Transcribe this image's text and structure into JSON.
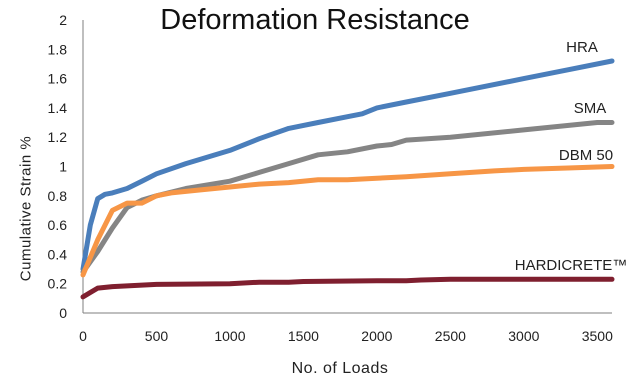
{
  "chart_data": {
    "type": "line",
    "title": "Deformation Resistance",
    "xlabel": "No. of Loads",
    "ylabel": "Cumulative Strain %",
    "xlim": [
      0,
      3600
    ],
    "ylim": [
      0,
      2
    ],
    "xticks": [
      "0",
      "500",
      "1000",
      "1500",
      "2000",
      "2500",
      "3000",
      "3500"
    ],
    "yticks": [
      "0",
      "0.2",
      "0.4",
      "0.6",
      "0.8",
      "1",
      "1.2",
      "1.4",
      "1.6",
      "1.8",
      "2"
    ],
    "grid": false,
    "legend": "inline labels at line ends",
    "series": [
      {
        "name": "HRA",
        "color": "#4a7ebb",
        "x": [
          0,
          50,
          100,
          150,
          200,
          300,
          400,
          500,
          700,
          1000,
          1200,
          1400,
          1600,
          1800,
          1900,
          2000,
          2200,
          2500,
          3000,
          3300,
          3600
        ],
        "y": [
          0.3,
          0.6,
          0.78,
          0.81,
          0.82,
          0.85,
          0.9,
          0.95,
          1.02,
          1.11,
          1.19,
          1.26,
          1.3,
          1.34,
          1.36,
          1.4,
          1.44,
          1.5,
          1.6,
          1.66,
          1.72
        ]
      },
      {
        "name": "SMA",
        "color": "#858585",
        "x": [
          0,
          100,
          200,
          300,
          400,
          500,
          700,
          1000,
          1200,
          1400,
          1600,
          1800,
          2000,
          2100,
          2200,
          2500,
          3000,
          3500,
          3600
        ],
        "y": [
          0.28,
          0.42,
          0.58,
          0.72,
          0.77,
          0.8,
          0.85,
          0.9,
          0.96,
          1.02,
          1.08,
          1.1,
          1.14,
          1.15,
          1.18,
          1.2,
          1.25,
          1.3,
          1.3
        ]
      },
      {
        "name": "DBM 50",
        "color": "#f79646",
        "x": [
          0,
          100,
          200,
          300,
          400,
          500,
          600,
          800,
          1000,
          1200,
          1400,
          1600,
          1800,
          2000,
          2200,
          2500,
          2800,
          3000,
          3300,
          3600
        ],
        "y": [
          0.26,
          0.5,
          0.7,
          0.75,
          0.75,
          0.8,
          0.82,
          0.84,
          0.86,
          0.88,
          0.89,
          0.91,
          0.91,
          0.92,
          0.93,
          0.95,
          0.97,
          0.98,
          0.99,
          1.0
        ]
      },
      {
        "name": "HARDICRETE™",
        "color": "#7f1f2f",
        "x": [
          0,
          50,
          100,
          200,
          300,
          500,
          1000,
          1200,
          1400,
          1500,
          2000,
          2200,
          2300,
          2500,
          3000,
          3600
        ],
        "y": [
          0.11,
          0.14,
          0.17,
          0.18,
          0.185,
          0.195,
          0.2,
          0.21,
          0.21,
          0.215,
          0.22,
          0.22,
          0.225,
          0.23,
          0.23,
          0.23
        ]
      }
    ]
  }
}
